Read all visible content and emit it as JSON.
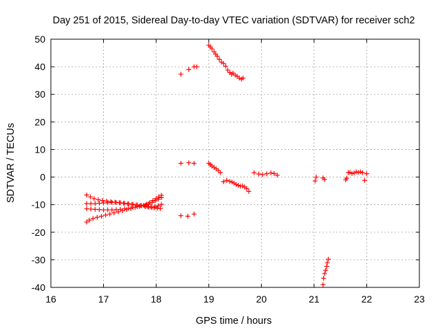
{
  "chart_data": {
    "type": "scatter",
    "title": "Day 251 of 2015, Sidereal Day-to-day VTEC variation (SDTVAR) for receiver sch2",
    "xlabel": "GPS time / hours",
    "ylabel": "SDTVAR / TECUs",
    "xlim": [
      16,
      23
    ],
    "ylim": [
      -40,
      50
    ],
    "xticks": [
      "16",
      "17",
      "18",
      "19",
      "20",
      "21",
      "22",
      "23"
    ],
    "yticks": [
      "-40",
      "-30",
      "-20",
      "-10",
      "0",
      "10",
      "20",
      "30",
      "40",
      "50"
    ],
    "grid": true,
    "marker": "+",
    "marker_color": "#ff0000",
    "series": [
      {
        "name": "SDTVAR",
        "x": [
          16.68,
          16.73,
          16.8,
          16.88,
          16.96,
          17.04,
          17.12,
          17.2,
          17.28,
          17.36,
          17.44,
          17.52,
          17.6,
          17.68,
          17.76,
          17.82,
          17.88,
          17.94,
          18.0,
          18.05,
          18.1,
          16.68,
          16.75,
          16.82,
          16.9,
          16.98,
          17.06,
          17.14,
          17.22,
          17.3,
          17.38,
          17.46,
          17.54,
          17.62,
          17.7,
          17.78,
          17.84,
          17.9,
          17.96,
          18.02,
          18.08,
          16.68,
          16.76,
          16.84,
          16.92,
          17.0,
          17.08,
          17.16,
          17.24,
          17.32,
          17.4,
          17.48,
          17.56,
          17.64,
          17.72,
          17.8,
          17.86,
          17.92,
          17.98,
          18.04,
          18.1,
          16.68,
          16.76,
          16.84,
          16.92,
          17.0,
          17.08,
          17.16,
          17.24,
          17.32,
          17.4,
          17.48,
          17.56,
          17.64,
          17.72,
          17.8,
          17.86,
          17.92,
          17.98,
          18.04,
          18.1,
          18.47,
          18.6,
          18.72,
          18.47,
          18.62,
          18.72,
          18.47,
          18.62,
          18.72,
          18.77,
          19.0,
          19.03,
          19.06,
          19.1,
          19.13,
          19.16,
          19.2,
          19.24,
          19.28,
          19.32,
          19.36,
          19.4,
          19.43,
          19.46,
          19.5,
          19.54,
          19.58,
          19.62,
          19.65,
          19.0,
          19.03,
          19.06,
          19.1,
          19.14,
          19.18,
          19.22,
          19.28,
          19.34,
          19.4,
          19.44,
          19.48,
          19.52,
          19.56,
          19.6,
          19.64,
          19.68,
          19.72,
          19.76,
          19.86,
          19.95,
          20.02,
          20.1,
          20.18,
          20.24,
          20.3,
          21.02,
          21.04,
          21.17,
          21.2,
          21.17,
          21.18,
          21.2,
          21.22,
          21.24,
          21.25,
          21.27,
          21.6,
          21.62,
          21.65,
          21.68,
          21.72,
          21.76,
          21.8,
          21.84,
          21.88,
          21.92,
          21.96,
          22.0
        ],
        "y": [
          -16.3,
          -15.6,
          -15,
          -14.6,
          -14.2,
          -13.8,
          -13.4,
          -13,
          -12.6,
          -12.2,
          -11.8,
          -11.4,
          -11,
          -10.6,
          -10.2,
          -9.8,
          -9.2,
          -8.5,
          -7.8,
          -7.2,
          -6.6,
          -6.5,
          -7.2,
          -7.8,
          -8.2,
          -8.5,
          -8.7,
          -8.9,
          -9.1,
          -9.3,
          -9.5,
          -9.7,
          -9.9,
          -10.1,
          -10.3,
          -10.5,
          -10.7,
          -10.9,
          -11.1,
          -11.3,
          -11.4,
          -11.5,
          -11.6,
          -11.7,
          -11.8,
          -11.9,
          -11.9,
          -11.9,
          -11.8,
          -11.7,
          -11.5,
          -11.3,
          -11,
          -10.7,
          -10.4,
          -10.1,
          -9.7,
          -9.2,
          -8.6,
          -8,
          -7.4,
          -9.6,
          -9.6,
          -9.6,
          -9.5,
          -9.4,
          -9.3,
          -9.2,
          -9.2,
          -9.3,
          -9.5,
          -9.7,
          -9.9,
          -10.1,
          -10.4,
          -10.7,
          -10.9,
          -11,
          -10.8,
          -10.4,
          -9.9,
          -14,
          -14.2,
          -13.4,
          5,
          5.2,
          5,
          37.3,
          39,
          40,
          40,
          47.8,
          47.2,
          46.5,
          45.4,
          44.6,
          43.8,
          42.7,
          41.7,
          41.2,
          40.2,
          38.8,
          37.9,
          37.3,
          37.7,
          37,
          36.5,
          35.9,
          35.5,
          35.9,
          5,
          4.5,
          4,
          3.5,
          3,
          2.4,
          1.6,
          -1.7,
          -1.2,
          -1.6,
          -1.8,
          -2.2,
          -2.7,
          -3,
          -3.3,
          -3.2,
          -3.6,
          -4.2,
          -5.2,
          1.6,
          1.1,
          0.9,
          1.2,
          1.5,
          1.3,
          0.7,
          -1.4,
          0,
          -0.3,
          -0.9,
          -39,
          -36.7,
          -35,
          -33.8,
          -32.4,
          -31.1,
          -29.8,
          -1,
          -0.4,
          1.6,
          1.7,
          1.3,
          1.5,
          1.9,
          1.7,
          1.9,
          1.6,
          -1.2,
          1.2
        ]
      }
    ]
  }
}
